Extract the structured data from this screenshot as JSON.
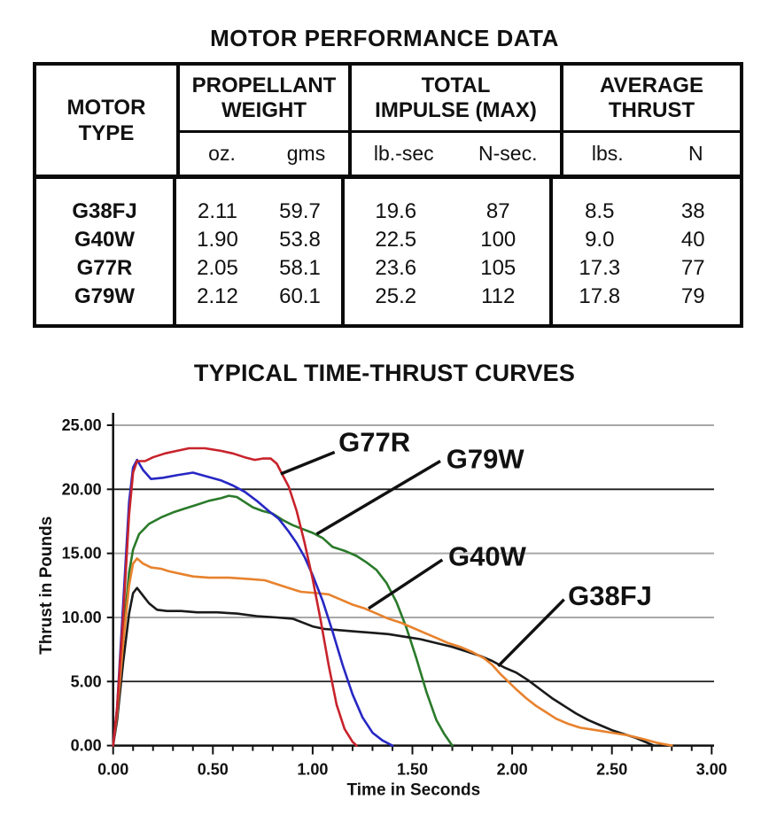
{
  "page": {
    "table_title": "MOTOR PERFORMANCE DATA",
    "chart_title": "TYPICAL TIME-THRUST CURVES"
  },
  "table": {
    "motor_col_header": "MOTOR\nTYPE",
    "groups": [
      {
        "label": "PROPELLANT\nWEIGHT",
        "units": [
          "oz.",
          "gms"
        ]
      },
      {
        "label": "TOTAL\nIMPULSE (MAX)",
        "units": [
          "lb.-sec",
          "N-sec."
        ]
      },
      {
        "label": "AVERAGE\nTHRUST",
        "units": [
          "lbs.",
          "N"
        ]
      }
    ],
    "rows": [
      {
        "motor": "G38FJ",
        "values": [
          "2.11",
          "59.7",
          "19.6",
          "87",
          "8.5",
          "38"
        ]
      },
      {
        "motor": "G40W",
        "values": [
          "1.90",
          "53.8",
          "22.5",
          "100",
          "9.0",
          "40"
        ]
      },
      {
        "motor": "G77R",
        "values": [
          "2.05",
          "58.1",
          "23.6",
          "105",
          "17.3",
          "77"
        ]
      },
      {
        "motor": "G79W",
        "values": [
          "2.12",
          "60.1",
          "25.2",
          "112",
          "17.8",
          "79"
        ]
      }
    ]
  },
  "chart_data": {
    "type": "line",
    "title": "TYPICAL TIME-THRUST CURVES",
    "xlabel": "Time in Seconds",
    "ylabel": "Thrust in Pounds",
    "xlim": [
      0,
      3
    ],
    "ylim": [
      0,
      25
    ],
    "x_ticks": [
      0,
      0.5,
      1,
      1.5,
      2,
      2.5,
      3
    ],
    "x_tick_labels": [
      "0.00",
      "0.50",
      "1.00",
      "1.50",
      "2.00",
      "2.50",
      "3.00"
    ],
    "x_minor_tick_step": 0.1,
    "y_ticks": [
      0,
      5,
      10,
      15,
      20,
      25
    ],
    "y_tick_labels": [
      "0.00",
      "5.00",
      "10.00",
      "15.00",
      "20.00",
      "25.00"
    ],
    "grid": true,
    "legend_position": "inline-callouts",
    "grid_color": "#a8a8a8",
    "grid_emphasis_color": "#1c1c1c",
    "emphasized_gridlines": [
      5,
      20
    ],
    "axis_color": "#111111",
    "series": [
      {
        "name": "G79W",
        "color": "#2a7a2a",
        "label": {
          "text": "G79W",
          "pos": [
            1.67,
            23.2
          ],
          "leader": [
            [
              1.64,
              22.2
            ],
            [
              1.02,
              16.5
            ]
          ]
        },
        "points": [
          [
            0,
            0
          ],
          [
            0.02,
            2.5
          ],
          [
            0.05,
            8.5
          ],
          [
            0.08,
            13.5
          ],
          [
            0.1,
            15.3
          ],
          [
            0.13,
            16.5
          ],
          [
            0.18,
            17.3
          ],
          [
            0.24,
            17.8
          ],
          [
            0.3,
            18.2
          ],
          [
            0.36,
            18.5
          ],
          [
            0.42,
            18.8
          ],
          [
            0.48,
            19.1
          ],
          [
            0.54,
            19.3
          ],
          [
            0.58,
            19.5
          ],
          [
            0.62,
            19.4
          ],
          [
            0.66,
            19.0
          ],
          [
            0.7,
            18.6
          ],
          [
            0.75,
            18.3
          ],
          [
            0.8,
            18.1
          ],
          [
            0.85,
            17.6
          ],
          [
            0.9,
            17.2
          ],
          [
            0.95,
            16.9
          ],
          [
            1.0,
            16.6
          ],
          [
            1.05,
            16.2
          ],
          [
            1.1,
            15.5
          ],
          [
            1.16,
            15.2
          ],
          [
            1.22,
            14.8
          ],
          [
            1.27,
            14.3
          ],
          [
            1.32,
            13.7
          ],
          [
            1.37,
            12.7
          ],
          [
            1.42,
            11.2
          ],
          [
            1.47,
            9.2
          ],
          [
            1.52,
            6.8
          ],
          [
            1.57,
            4.2
          ],
          [
            1.62,
            2.0
          ],
          [
            1.66,
            0.9
          ],
          [
            1.7,
            0
          ]
        ]
      },
      {
        "name": "G38FJ",
        "color": "#1a1a1a",
        "label": {
          "text": "G38FJ",
          "pos": [
            2.28,
            12.5
          ],
          "leader": [
            [
              2.26,
              11.4
            ],
            [
              1.93,
              6.2
            ]
          ]
        },
        "points": [
          [
            0,
            0
          ],
          [
            0.02,
            2
          ],
          [
            0.05,
            6.5
          ],
          [
            0.08,
            10.3
          ],
          [
            0.1,
            11.9
          ],
          [
            0.12,
            12.3
          ],
          [
            0.15,
            11.7
          ],
          [
            0.18,
            11.1
          ],
          [
            0.22,
            10.6
          ],
          [
            0.27,
            10.5
          ],
          [
            0.34,
            10.5
          ],
          [
            0.42,
            10.4
          ],
          [
            0.52,
            10.4
          ],
          [
            0.62,
            10.3
          ],
          [
            0.72,
            10.1
          ],
          [
            0.82,
            10.0
          ],
          [
            0.9,
            9.9
          ],
          [
            0.95,
            9.6
          ],
          [
            1.0,
            9.3
          ],
          [
            1.06,
            9.1
          ],
          [
            1.14,
            9.0
          ],
          [
            1.22,
            8.9
          ],
          [
            1.3,
            8.8
          ],
          [
            1.38,
            8.7
          ],
          [
            1.46,
            8.5
          ],
          [
            1.54,
            8.3
          ],
          [
            1.62,
            8.0
          ],
          [
            1.7,
            7.7
          ],
          [
            1.78,
            7.3
          ],
          [
            1.84,
            7.0
          ],
          [
            1.9,
            6.6
          ],
          [
            1.96,
            6.1
          ],
          [
            2.02,
            5.7
          ],
          [
            2.08,
            5.1
          ],
          [
            2.14,
            4.4
          ],
          [
            2.2,
            3.7
          ],
          [
            2.26,
            3.1
          ],
          [
            2.32,
            2.5
          ],
          [
            2.38,
            2.0
          ],
          [
            2.44,
            1.6
          ],
          [
            2.5,
            1.2
          ],
          [
            2.56,
            0.9
          ],
          [
            2.62,
            0.6
          ],
          [
            2.68,
            0.2
          ],
          [
            2.71,
            0
          ]
        ]
      },
      {
        "name": "G40W",
        "color": "#e8822d",
        "label": {
          "text": "G40W",
          "pos": [
            1.68,
            15.6
          ],
          "leader": [
            [
              1.65,
              14.5
            ],
            [
              1.28,
              10.7
            ]
          ]
        },
        "points": [
          [
            0,
            0
          ],
          [
            0.02,
            2.5
          ],
          [
            0.05,
            8
          ],
          [
            0.08,
            12.5
          ],
          [
            0.1,
            14.2
          ],
          [
            0.12,
            14.6
          ],
          [
            0.15,
            14.2
          ],
          [
            0.19,
            13.9
          ],
          [
            0.24,
            13.8
          ],
          [
            0.28,
            13.6
          ],
          [
            0.34,
            13.4
          ],
          [
            0.4,
            13.2
          ],
          [
            0.48,
            13.1
          ],
          [
            0.58,
            13.1
          ],
          [
            0.68,
            13.0
          ],
          [
            0.76,
            12.9
          ],
          [
            0.82,
            12.6
          ],
          [
            0.88,
            12.3
          ],
          [
            0.94,
            12.0
          ],
          [
            1.02,
            11.9
          ],
          [
            1.08,
            11.8
          ],
          [
            1.14,
            11.4
          ],
          [
            1.2,
            11.0
          ],
          [
            1.26,
            10.7
          ],
          [
            1.32,
            10.3
          ],
          [
            1.38,
            9.9
          ],
          [
            1.44,
            9.6
          ],
          [
            1.5,
            9.2
          ],
          [
            1.56,
            8.8
          ],
          [
            1.62,
            8.4
          ],
          [
            1.68,
            8.0
          ],
          [
            1.74,
            7.7
          ],
          [
            1.8,
            7.3
          ],
          [
            1.86,
            6.8
          ],
          [
            1.9,
            6.3
          ],
          [
            1.94,
            5.6
          ],
          [
            1.98,
            5.0
          ],
          [
            2.02,
            4.4
          ],
          [
            2.07,
            3.7
          ],
          [
            2.12,
            3.1
          ],
          [
            2.17,
            2.6
          ],
          [
            2.22,
            2.1
          ],
          [
            2.28,
            1.7
          ],
          [
            2.34,
            1.4
          ],
          [
            2.42,
            1.2
          ],
          [
            2.5,
            1.0
          ],
          [
            2.58,
            0.8
          ],
          [
            2.66,
            0.5
          ],
          [
            2.73,
            0.2
          ],
          [
            2.8,
            0
          ]
        ]
      },
      {
        "name": "unlabeled-blue",
        "color": "#2727c4",
        "label": null,
        "points": [
          [
            0,
            0
          ],
          [
            0.02,
            3
          ],
          [
            0.05,
            11
          ],
          [
            0.08,
            19
          ],
          [
            0.1,
            21.7
          ],
          [
            0.12,
            22.3
          ],
          [
            0.15,
            21.5
          ],
          [
            0.19,
            20.8
          ],
          [
            0.25,
            20.9
          ],
          [
            0.32,
            21.1
          ],
          [
            0.4,
            21.3
          ],
          [
            0.47,
            21.0
          ],
          [
            0.54,
            20.7
          ],
          [
            0.6,
            20.3
          ],
          [
            0.66,
            19.8
          ],
          [
            0.72,
            19.1
          ],
          [
            0.78,
            18.3
          ],
          [
            0.83,
            17.7
          ],
          [
            0.88,
            16.7
          ],
          [
            0.92,
            15.8
          ],
          [
            0.96,
            14.7
          ],
          [
            1.0,
            13.3
          ],
          [
            1.05,
            11.3
          ],
          [
            1.1,
            8.9
          ],
          [
            1.15,
            6.3
          ],
          [
            1.2,
            4.0
          ],
          [
            1.25,
            2.2
          ],
          [
            1.3,
            1.0
          ],
          [
            1.35,
            0.4
          ],
          [
            1.4,
            0
          ]
        ]
      },
      {
        "name": "G77R",
        "color": "#c8232c",
        "label": {
          "text": "G77R",
          "pos": [
            1.13,
            24.5
          ],
          "leader": [
            [
              1.11,
              22.9
            ],
            [
              0.84,
              21.2
            ]
          ]
        },
        "points": [
          [
            0,
            0
          ],
          [
            0.02,
            3
          ],
          [
            0.05,
            10
          ],
          [
            0.08,
            18
          ],
          [
            0.1,
            21.3
          ],
          [
            0.12,
            22.2
          ],
          [
            0.16,
            22.2
          ],
          [
            0.2,
            22.5
          ],
          [
            0.26,
            22.8
          ],
          [
            0.32,
            23.0
          ],
          [
            0.38,
            23.2
          ],
          [
            0.46,
            23.2
          ],
          [
            0.54,
            23.0
          ],
          [
            0.6,
            22.8
          ],
          [
            0.66,
            22.5
          ],
          [
            0.71,
            22.3
          ],
          [
            0.75,
            22.4
          ],
          [
            0.79,
            22.4
          ],
          [
            0.82,
            22.0
          ],
          [
            0.85,
            21.1
          ],
          [
            0.88,
            20.2
          ],
          [
            0.92,
            18.3
          ],
          [
            0.96,
            15.8
          ],
          [
            1.0,
            13.0
          ],
          [
            1.04,
            9.8
          ],
          [
            1.08,
            6.3
          ],
          [
            1.12,
            3.2
          ],
          [
            1.16,
            1.3
          ],
          [
            1.2,
            0.3
          ],
          [
            1.22,
            0
          ]
        ]
      }
    ]
  }
}
